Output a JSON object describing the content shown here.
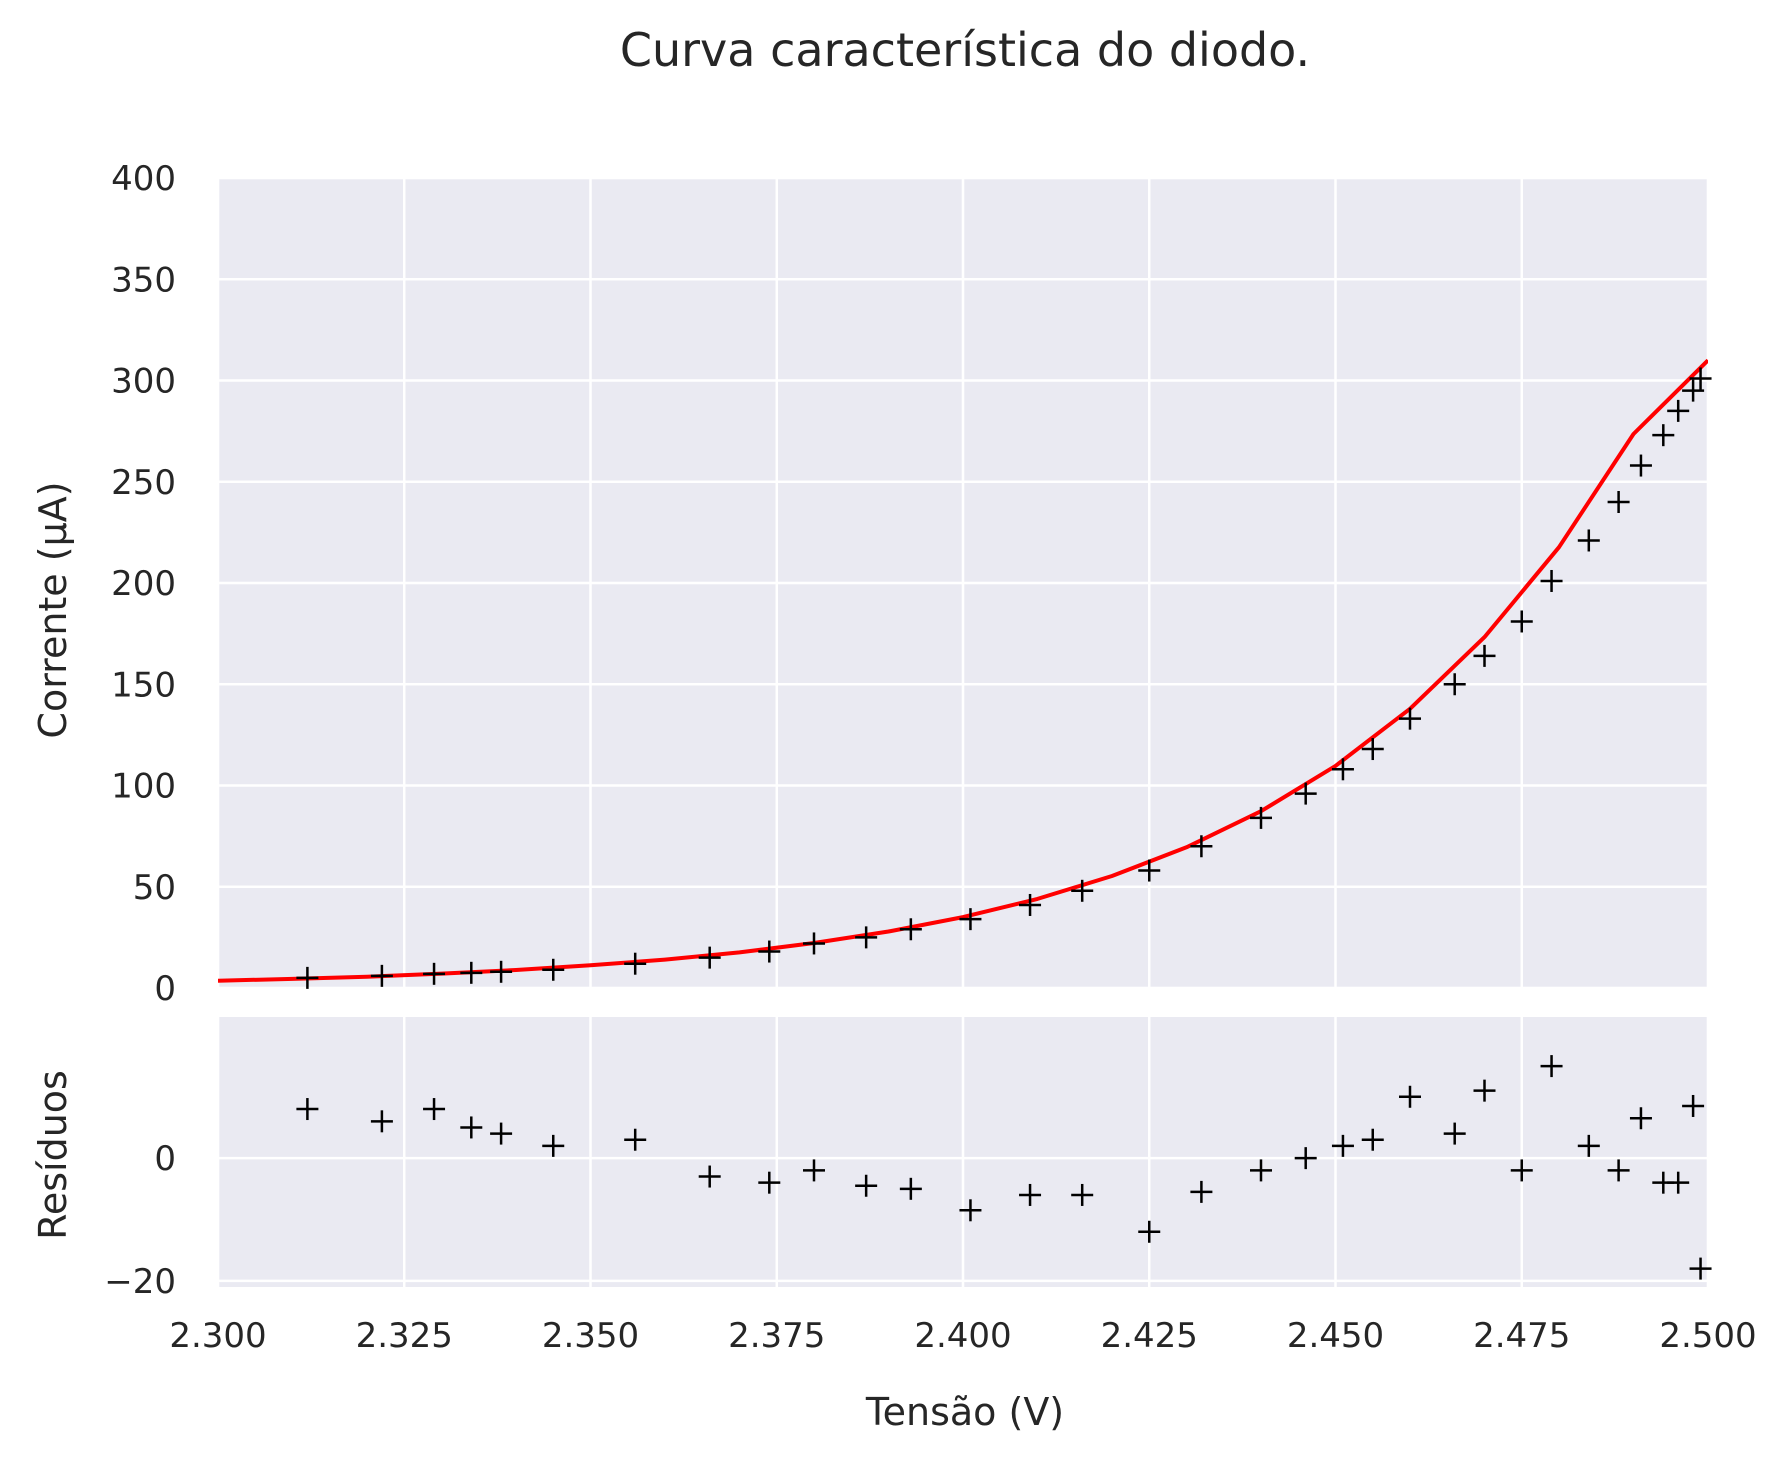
{
  "chart_data": {
    "type": "scatter",
    "title": "Curva característica do diodo.",
    "colors": {
      "background": "#eaeaf2",
      "grid": "#ffffff",
      "fit_line": "#ff0000",
      "markers": "#000000"
    },
    "xlabel": "Tensão (V)",
    "x_ticks": [
      "2.300",
      "2.325",
      "2.350",
      "2.375",
      "2.400",
      "2.425",
      "2.450",
      "2.475",
      "2.500"
    ],
    "xlim": [
      2.3,
      2.5
    ],
    "top_panel": {
      "ylabel": "Corrente (μA)",
      "ylim": [
        0,
        400
      ],
      "y_ticks": [
        "0",
        "50",
        "100",
        "150",
        "200",
        "250",
        "300",
        "350",
        "400"
      ],
      "fit_series": {
        "x": [
          2.3,
          2.31,
          2.32,
          2.33,
          2.34,
          2.35,
          2.36,
          2.37,
          2.38,
          2.39,
          2.4,
          2.41,
          2.42,
          2.43,
          2.44,
          2.45,
          2.46,
          2.47,
          2.48,
          2.49,
          2.5
        ],
        "y": [
          3.6,
          4.5,
          5.6,
          7.1,
          8.9,
          11.2,
          14.0,
          17.6,
          22.2,
          27.9,
          35.0,
          44.0,
          55.3,
          69.5,
          87.3,
          109.7,
          137.9,
          173.3,
          217.7,
          273.6,
          310.0
        ]
      },
      "data_series": {
        "x": [
          2.312,
          2.322,
          2.329,
          2.334,
          2.338,
          2.345,
          2.356,
          2.366,
          2.374,
          2.38,
          2.387,
          2.393,
          2.401,
          2.409,
          2.416,
          2.425,
          2.432,
          2.44,
          2.446,
          2.451,
          2.455,
          2.46,
          2.466,
          2.47,
          2.475,
          2.479,
          2.484,
          2.488,
          2.491,
          2.494,
          2.496,
          2.498,
          2.499
        ],
        "y": [
          5,
          6,
          7,
          7.5,
          8,
          9,
          12,
          15,
          18,
          22,
          25,
          29,
          34,
          41,
          48,
          58,
          70,
          84,
          96,
          108,
          118,
          133,
          150,
          164,
          181,
          201,
          221,
          240,
          258,
          273,
          285,
          295,
          301
        ]
      }
    },
    "bottom_panel": {
      "ylabel": "Resíduos",
      "ylim": [
        -21,
        23
      ],
      "y_ticks": [
        "0",
        "−20"
      ],
      "y_tick_values": [
        0,
        -20
      ],
      "residuals": [
        8,
        6,
        8,
        5,
        4,
        2,
        3,
        -3,
        -4,
        -2,
        -4.5,
        -5,
        -8.5,
        -6,
        -6,
        -12,
        -5.5,
        -2,
        0,
        2,
        3,
        10,
        4,
        11,
        -2,
        15,
        2,
        -2,
        6.5,
        -4,
        -4,
        8.5,
        -18
      ]
    }
  }
}
